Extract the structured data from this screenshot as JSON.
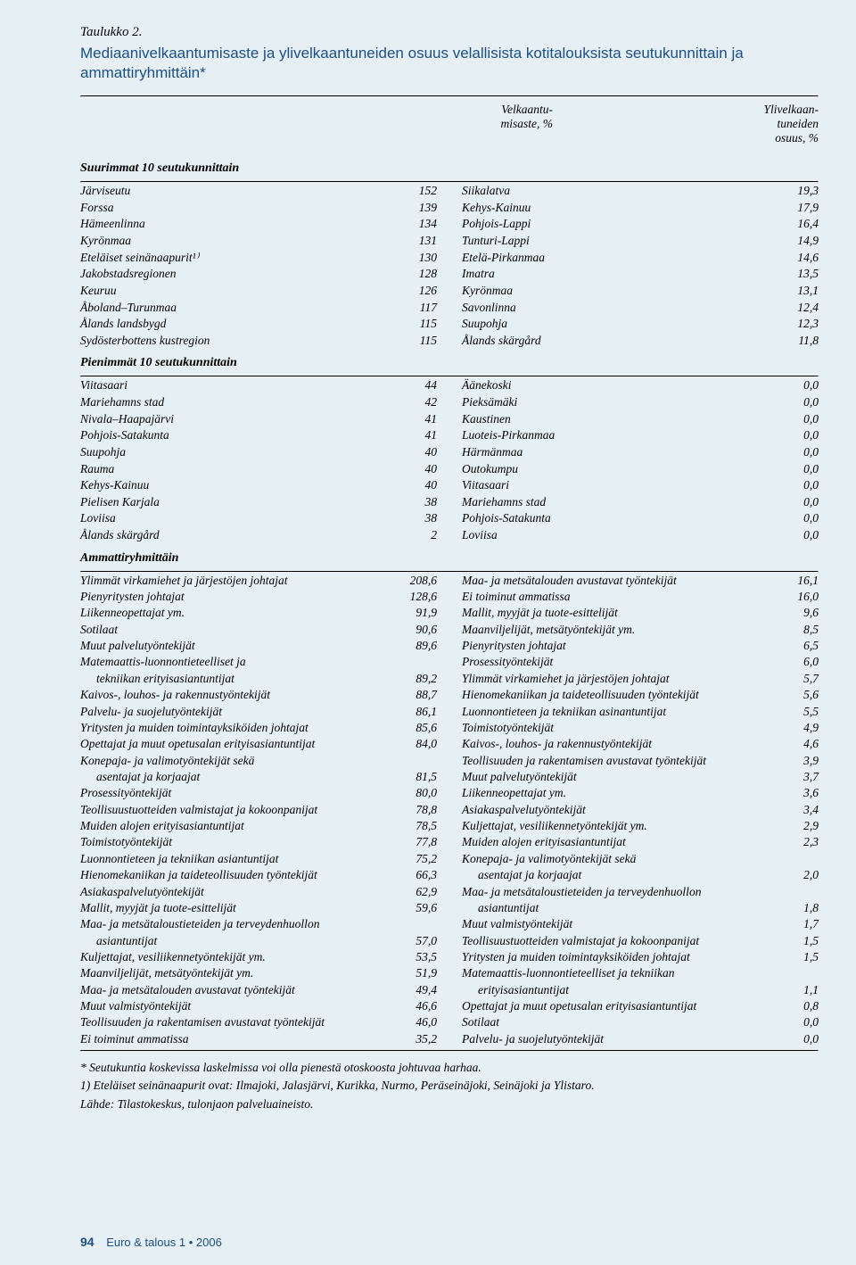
{
  "table_label": "Taulukko 2.",
  "title": "Mediaanivelkaantumisaste ja ylivelkaantuneiden osuus velallisista kotitalouksista seutukunnittain ja ammattiryhmittäin*",
  "col_headers": {
    "left": "Velkaantu-\nmisaste, %",
    "right": "Ylivelkaan-\ntuneiden\nosuus, %"
  },
  "sections": {
    "s1": {
      "heading": "Suurimmat 10 seutukunnittain"
    },
    "s2": {
      "heading": "Pienimmät 10 seutukunnittain"
    },
    "s3": {
      "heading": "Ammattiryhmittäin"
    }
  },
  "s1_rows": [
    {
      "l": "Järviseutu",
      "lv": "152",
      "r": "Siikalatva",
      "rv": "19,3"
    },
    {
      "l": "Forssa",
      "lv": "139",
      "r": "Kehys-Kainuu",
      "rv": "17,9"
    },
    {
      "l": "Hämeenlinna",
      "lv": "134",
      "r": "Pohjois-Lappi",
      "rv": "16,4"
    },
    {
      "l": "Kyrönmaa",
      "lv": "131",
      "r": "Tunturi-Lappi",
      "rv": "14,9"
    },
    {
      "l": "Eteläiset seinänaapurit¹⁾",
      "lv": "130",
      "r": "Etelä-Pirkanmaa",
      "rv": "14,6"
    },
    {
      "l": "Jakobstadsregionen",
      "lv": "128",
      "r": "Imatra",
      "rv": "13,5"
    },
    {
      "l": "Keuruu",
      "lv": "126",
      "r": "Kyrönmaa",
      "rv": "13,1"
    },
    {
      "l": "Åboland–Turunmaa",
      "lv": "117",
      "r": "Savonlinna",
      "rv": "12,4"
    },
    {
      "l": "Ålands landsbygd",
      "lv": "115",
      "r": "Suupohja",
      "rv": "12,3"
    },
    {
      "l": "Sydösterbottens kustregion",
      "lv": "115",
      "r": "Ålands skärgård",
      "rv": "11,8"
    }
  ],
  "s2_rows": [
    {
      "l": "Viitasaari",
      "lv": "44",
      "r": "Äänekoski",
      "rv": "0,0"
    },
    {
      "l": "Mariehamns stad",
      "lv": "42",
      "r": "Pieksämäki",
      "rv": "0,0"
    },
    {
      "l": "Nivala–Haapajärvi",
      "lv": "41",
      "r": "Kaustinen",
      "rv": "0,0"
    },
    {
      "l": "Pohjois-Satakunta",
      "lv": "41",
      "r": "Luoteis-Pirkanmaa",
      "rv": "0,0"
    },
    {
      "l": "Suupohja",
      "lv": "40",
      "r": "Härmänmaa",
      "rv": "0,0"
    },
    {
      "l": "Rauma",
      "lv": "40",
      "r": "Outokumpu",
      "rv": "0,0"
    },
    {
      "l": "Kehys-Kainuu",
      "lv": "40",
      "r": "Viitasaari",
      "rv": "0,0"
    },
    {
      "l": "Pielisen Karjala",
      "lv": "38",
      "r": "Mariehamns stad",
      "rv": "0,0"
    },
    {
      "l": "Loviisa",
      "lv": "38",
      "r": "Pohjois-Satakunta",
      "rv": "0,0"
    },
    {
      "l": "Ålands skärgård",
      "lv": "2",
      "r": "Loviisa",
      "rv": "0,0"
    }
  ],
  "s3_rows": [
    {
      "l": "Ylimmät virkamiehet ja järjestöjen johtajat",
      "lv": "208,6",
      "r": "Maa- ja metsätalouden avustavat työntekijät",
      "rv": "16,1"
    },
    {
      "l": "Pienyritysten johtajat",
      "lv": "128,6",
      "r": "Ei toiminut ammatissa",
      "rv": "16,0"
    },
    {
      "l": "Liikenneopettajat ym.",
      "lv": "91,9",
      "r": "Mallit, myyjät ja tuote-esittelijät",
      "rv": "9,6"
    },
    {
      "l": "Sotilaat",
      "lv": "90,6",
      "r": "Maanviljelijät, metsätyöntekijät ym.",
      "rv": "8,5"
    },
    {
      "l": "Muut palvelutyöntekijät",
      "lv": "89,6",
      "r": "Pienyritysten johtajat",
      "rv": "6,5"
    },
    {
      "l": "Matemaattis-luonnontieteelliset ja",
      "lv": "",
      "r": "Prosessityöntekijät",
      "rv": "6,0"
    },
    {
      "l": "tekniikan erityisasiantuntijat",
      "lindent": true,
      "lv": "89,2",
      "r": "Ylimmät virkamiehet ja järjestöjen johtajat",
      "rv": "5,7"
    },
    {
      "l": "Kaivos-, louhos- ja rakennustyöntekijät",
      "lv": "88,7",
      "r": "Hienomekaniikan ja taideteollisuuden työntekijät",
      "rv": "5,6"
    },
    {
      "l": "Palvelu- ja suojelutyöntekijät",
      "lv": "86,1",
      "r": "Luonnontieteen ja tekniikan asinantuntijat",
      "rv": "5,5"
    },
    {
      "l": "Yritysten ja muiden toimintayksiköiden johtajat",
      "lv": "85,6",
      "r": "Toimistotyöntekijät",
      "rv": "4,9"
    },
    {
      "l": "Opettajat ja muut opetusalan erityisasiantuntijat",
      "lv": "84,0",
      "r": "Kaivos-, louhos- ja rakennustyöntekijät",
      "rv": "4,6"
    },
    {
      "l": "Konepaja- ja valimotyöntekijät sekä",
      "lv": "",
      "r": "Teollisuuden ja rakentamisen avustavat työntekijät",
      "rv": "3,9"
    },
    {
      "l": "asentajat ja korjaajat",
      "lindent": true,
      "lv": "81,5",
      "r": "Muut palvelutyöntekijät",
      "rv": "3,7"
    },
    {
      "l": "Prosessityöntekijät",
      "lv": "80,0",
      "r": "Liikenneopettajat ym.",
      "rv": "3,6"
    },
    {
      "l": "Teollisuustuotteiden valmistajat ja kokoonpanijat",
      "lv": "78,8",
      "r": "Asiakaspalvelutyöntekijät",
      "rv": "3,4"
    },
    {
      "l": "Muiden alojen erityisasiantuntijat",
      "lv": "78,5",
      "r": "Kuljettajat, vesiliikennetyöntekijät ym.",
      "rv": "2,9"
    },
    {
      "l": "Toimistotyöntekijät",
      "lv": "77,8",
      "r": "Muiden alojen erityisasiantuntijat",
      "rv": "2,3"
    },
    {
      "l": "Luonnontieteen ja tekniikan asiantuntijat",
      "lv": "75,2",
      "r": "Konepaja- ja valimotyöntekijät sekä",
      "rv": ""
    },
    {
      "l": "Hienomekaniikan ja taideteollisuuden työntekijät",
      "lv": "66,3",
      "r": "asentajat ja korjaajat",
      "rindent": true,
      "rv": "2,0"
    },
    {
      "l": "Asiakaspalvelutyöntekijät",
      "lv": "62,9",
      "r": "Maa- ja metsätaloustieteiden ja terveydenhuollon",
      "rv": ""
    },
    {
      "l": "Mallit, myyjät ja tuote-esittelijät",
      "lv": "59,6",
      "r": "asiantuntijat",
      "rindent": true,
      "rv": "1,8"
    },
    {
      "l": "Maa- ja metsätaloustieteiden ja terveydenhuollon",
      "lv": "",
      "r": "Muut valmistyöntekijät",
      "rv": "1,7"
    },
    {
      "l": "asiantuntijat",
      "lindent": true,
      "lv": "57,0",
      "r": "Teollisuustuotteiden valmistajat ja kokoonpanijat",
      "rv": "1,5"
    },
    {
      "l": "Kuljettajat, vesiliikennetyöntekijät ym.",
      "lv": "53,5",
      "r": "Yritysten ja muiden toimintayksiköiden johtajat",
      "rv": "1,5"
    },
    {
      "l": "Maanviljelijät, metsätyöntekijät ym.",
      "lv": "51,9",
      "r": "Matemaattis-luonnontieteelliset ja tekniikan",
      "rv": ""
    },
    {
      "l": "Maa- ja metsätalouden avustavat työntekijät",
      "lv": "49,4",
      "r": "erityisasiantuntijat",
      "rindent": true,
      "rv": "1,1"
    },
    {
      "l": "Muut valmistyöntekijät",
      "lv": "46,6",
      "r": "Opettajat ja muut opetusalan erityisasiantuntijat",
      "rv": "0,8"
    },
    {
      "l": "Teollisuuden ja rakentamisen avustavat työntekijät",
      "lv": "46,0",
      "r": "Sotilaat",
      "rv": "0,0"
    },
    {
      "l": "Ei toiminut ammatissa",
      "lv": "35,2",
      "r": "Palvelu- ja suojelutyöntekijät",
      "rv": "0,0"
    }
  ],
  "footnotes": [
    "*  Seutukuntia koskevissa laskelmissa voi olla pienestä otoskoosta johtuvaa harhaa.",
    "1) Eteläiset seinänaapurit ovat: Ilmajoki, Jalasjärvi, Kurikka, Nurmo, Peräseinäjoki, Seinäjoki ja Ylistaro.",
    "Lähde: Tilastokeskus, tulonjaon palveluaineisto."
  ],
  "footer": {
    "page": "94",
    "publication": "Euro & talous",
    "issue": "1 • 2006"
  }
}
